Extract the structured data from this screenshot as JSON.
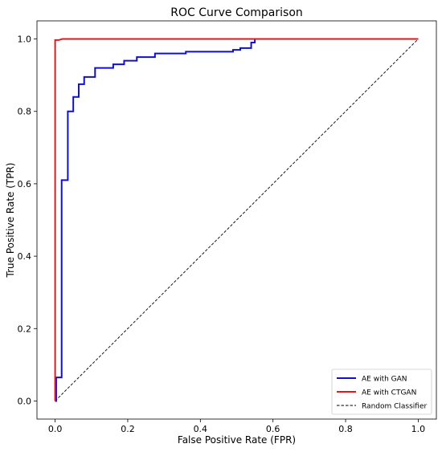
{
  "chart_data": {
    "type": "line",
    "title": "ROC Curve Comparison",
    "xlabel": "False Positive Rate (FPR)",
    "ylabel": "True Positive Rate (TPR)",
    "xlim": [
      -0.05,
      1.05
    ],
    "ylim": [
      -0.05,
      1.05
    ],
    "xticks": [
      0.0,
      0.2,
      0.4,
      0.6,
      0.8,
      1.0
    ],
    "yticks": [
      0.0,
      0.2,
      0.4,
      0.6,
      0.8,
      1.0
    ],
    "xtick_labels": [
      "0.0",
      "0.2",
      "0.4",
      "0.6",
      "0.8",
      "1.0"
    ],
    "ytick_labels": [
      "0.0",
      "0.2",
      "0.4",
      "0.6",
      "0.8",
      "1.0"
    ],
    "grid": false,
    "legend_position": "lower-right",
    "series": [
      {
        "name": "AE with GAN",
        "color": "#1010c8",
        "style": "solid",
        "x": [
          0.0,
          0.003,
          0.003,
          0.018,
          0.018,
          0.035,
          0.035,
          0.05,
          0.05,
          0.065,
          0.065,
          0.08,
          0.08,
          0.11,
          0.11,
          0.16,
          0.16,
          0.19,
          0.19,
          0.225,
          0.225,
          0.275,
          0.275,
          0.36,
          0.36,
          0.49,
          0.49,
          0.51,
          0.51,
          0.54,
          0.54,
          0.55,
          0.55,
          1.0
        ],
        "y": [
          0.0,
          0.0,
          0.065,
          0.065,
          0.61,
          0.61,
          0.8,
          0.8,
          0.84,
          0.84,
          0.875,
          0.875,
          0.895,
          0.895,
          0.92,
          0.92,
          0.93,
          0.93,
          0.94,
          0.94,
          0.95,
          0.95,
          0.96,
          0.96,
          0.965,
          0.965,
          0.97,
          0.97,
          0.975,
          0.975,
          0.99,
          0.99,
          1.0,
          1.0
        ]
      },
      {
        "name": "AE with CTGAN",
        "color": "#e31a1c",
        "style": "solid",
        "x": [
          0.0,
          0.0,
          0.0,
          0.01,
          0.02,
          1.0
        ],
        "y": [
          0.0,
          0.6,
          0.997,
          0.997,
          1.0,
          1.0
        ]
      },
      {
        "name": "Random Classifier",
        "color": "#000000",
        "style": "dashed",
        "x": [
          0.0,
          1.0
        ],
        "y": [
          0.0,
          1.0
        ]
      }
    ]
  }
}
